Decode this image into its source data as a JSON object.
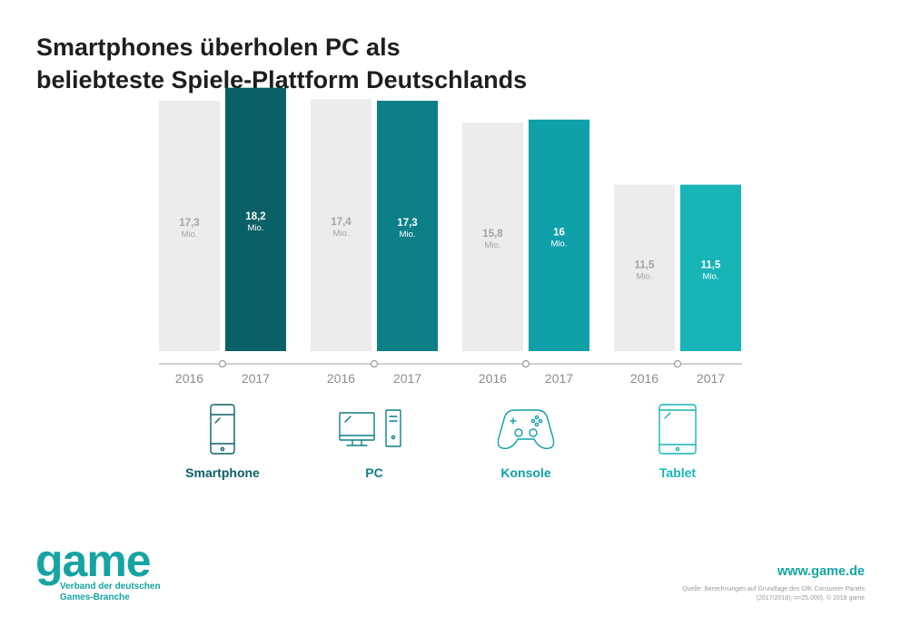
{
  "title_line1": "Smartphones überholen PC als",
  "title_line2": "beliebteste Spiele-Plattform Deutschlands",
  "chart_data": {
    "type": "bar",
    "ylim": [
      0,
      20
    ],
    "value_unit": "Mio.",
    "series": [
      {
        "name": "2016",
        "values": [
          17.3,
          17.4,
          15.8,
          11.5
        ],
        "labels": [
          "17,3",
          "17,4",
          "15,8",
          "11,5"
        ]
      },
      {
        "name": "2017",
        "values": [
          18.2,
          17.3,
          16,
          11.5
        ],
        "labels": [
          "18,2",
          "17,3",
          "16",
          "11,5"
        ]
      }
    ],
    "categories": [
      "Smartphone",
      "PC",
      "Konsole",
      "Tablet"
    ],
    "icons": [
      "smartphone-icon",
      "pc-icon",
      "gamepad-icon",
      "tablet-icon"
    ],
    "colors": {
      "2016_bar": "#ececec",
      "2016_text": "#a3a3a3",
      "2017_bars": [
        "#0b5f67",
        "#0d7f86",
        "#0fa0a8",
        "#17b4b8"
      ],
      "category_label": [
        "#0b5f67",
        "#0d7f86",
        "#0fa0a8",
        "#17b4b8"
      ]
    },
    "grid": false
  },
  "footer": {
    "logo": "game",
    "tagline_line1": "Verband der deutschen",
    "tagline_line2": "Games-Branche",
    "website": "www.game.de",
    "source_line1": "Quelle: Berechnungen auf Grundlage des GfK Consumer Panels",
    "source_line2": "(2017/2018); n=25.000). © 2018 game"
  }
}
